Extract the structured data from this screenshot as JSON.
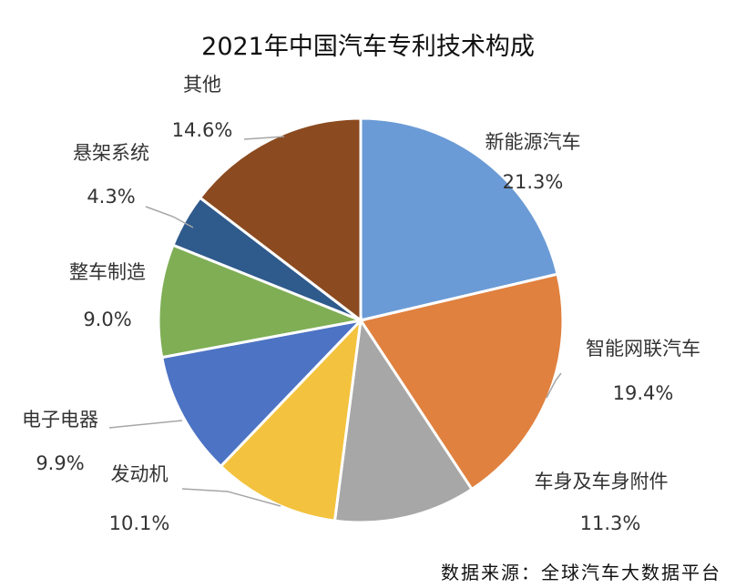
{
  "chart_data": {
    "type": "pie",
    "title": "2021年中国汽车专利技术构成",
    "slices": [
      {
        "name": "新能源汽车",
        "value": 21.3,
        "value_label": "21.3%",
        "color": "#6b9bd6"
      },
      {
        "name": "智能网联汽车",
        "value": 19.4,
        "value_label": "19.4%",
        "color": "#e0813f"
      },
      {
        "name": "车身及车身附件",
        "value": 11.3,
        "value_label": "11.3%",
        "color": "#a7a7a7"
      },
      {
        "name": "发动机",
        "value": 10.1,
        "value_label": "10.1%",
        "color": "#f3c23e"
      },
      {
        "name": "电子电器",
        "value": 9.9,
        "value_label": "9.9%",
        "color": "#4d73c4"
      },
      {
        "name": "整车制造",
        "value": 9.0,
        "value_label": "9.0%",
        "color": "#7fae55"
      },
      {
        "name": "悬架系统",
        "value": 4.3,
        "value_label": "4.3%",
        "color": "#2f5a8c"
      },
      {
        "name": "其他",
        "value": 14.6,
        "value_label": "14.6%",
        "color": "#8b4a1f"
      }
    ],
    "start_angle": "12 o'clock",
    "direction": "clockwise",
    "source": "数据来源：全球汽车大数据平台"
  }
}
